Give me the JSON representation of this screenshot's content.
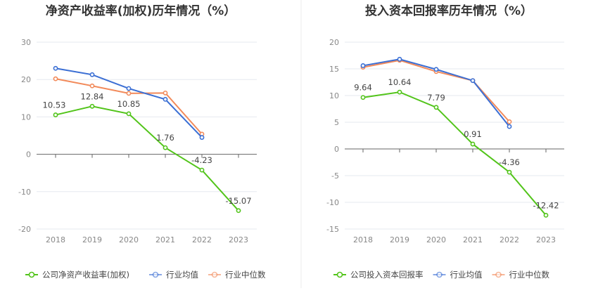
{
  "chart_data": [
    {
      "type": "line",
      "title": "净资产收益率(加权)历年情况（%）",
      "categories": [
        "2018",
        "2019",
        "2020",
        "2021",
        "2022",
        "2023"
      ],
      "ylim": [
        -20,
        30
      ],
      "yticks": [
        30,
        20,
        10,
        0,
        -10,
        -20
      ],
      "grid": true,
      "legend_position": "bottom-left",
      "series": [
        {
          "name": "公司净资产收益率(加权)",
          "color": "#52c41a",
          "values": [
            10.53,
            12.84,
            10.85,
            1.76,
            -4.23,
            -15.07
          ],
          "labels": [
            "10.53",
            "12.84",
            "10.85",
            "1.76",
            "-4.23",
            "-15.07"
          ]
        },
        {
          "name": "行业均值",
          "color": "#3b6fd4",
          "values": [
            23.0,
            21.3,
            17.6,
            14.7,
            4.5,
            null
          ]
        },
        {
          "name": "行业中位数",
          "color": "#f28a5a",
          "values": [
            20.2,
            18.3,
            16.3,
            16.4,
            5.4,
            null
          ]
        }
      ]
    },
    {
      "type": "line",
      "title": "投入资本回报率历年情况（%）",
      "categories": [
        "2018",
        "2019",
        "2020",
        "2021",
        "2022",
        "2023"
      ],
      "ylim": [
        -15,
        20
      ],
      "yticks": [
        20,
        15,
        10,
        5,
        0,
        -5,
        -10,
        -15
      ],
      "grid": true,
      "legend_position": "bottom-left",
      "series": [
        {
          "name": "公司投入资本回报率",
          "color": "#52c41a",
          "values": [
            9.64,
            10.64,
            7.79,
            0.91,
            -4.36,
            -12.42
          ],
          "labels": [
            "9.64",
            "10.64",
            "7.79",
            "0.91",
            "-4.36",
            "-12.42"
          ]
        },
        {
          "name": "行业均值",
          "color": "#3b6fd4",
          "values": [
            15.6,
            16.8,
            14.9,
            12.8,
            4.2,
            null
          ]
        },
        {
          "name": "行业中位数",
          "color": "#f28a5a",
          "values": [
            15.3,
            16.6,
            14.5,
            12.8,
            5.1,
            null
          ]
        }
      ]
    }
  ]
}
